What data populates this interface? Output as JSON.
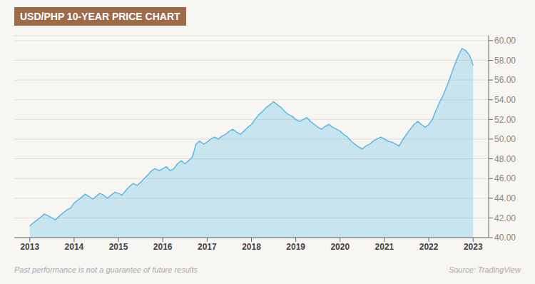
{
  "chart_data": {
    "type": "area",
    "title": "USD/PHP 10-YEAR PRICE CHART",
    "annotations": [
      "Past performance is not a guarantee of future results",
      "Source: TradingView"
    ],
    "color": "#5ab8e8",
    "grid": true,
    "xlim": [
      2012.65,
      2023.35
    ],
    "xticks": [
      2013,
      2014,
      2015,
      2016,
      2017,
      2018,
      2019,
      2020,
      2021,
      2022,
      2023
    ],
    "ylim": [
      40.0,
      60.5
    ],
    "yticks": [
      {
        "value": 40.0,
        "label": "40.00"
      },
      {
        "value": 42.0,
        "label": "42.00"
      },
      {
        "value": 44.0,
        "label": "44.00"
      },
      {
        "value": 46.0,
        "label": "46.00"
      },
      {
        "value": 48.0,
        "label": "48.00"
      },
      {
        "value": 50.0,
        "label": "50.00"
      },
      {
        "value": 52.0,
        "label": "52.00"
      },
      {
        "value": 54.0,
        "label": "54.00"
      },
      {
        "value": 56.0,
        "label": "56.00"
      },
      {
        "value": 58.0,
        "label": "58.00"
      },
      {
        "value": 60.0,
        "label": "60.00"
      }
    ],
    "x": [
      2013.0,
      2013.08,
      2013.17,
      2013.25,
      2013.33,
      2013.42,
      2013.5,
      2013.58,
      2013.67,
      2013.75,
      2013.83,
      2013.92,
      2014.0,
      2014.08,
      2014.17,
      2014.25,
      2014.33,
      2014.42,
      2014.5,
      2014.58,
      2014.67,
      2014.75,
      2014.83,
      2014.92,
      2015.0,
      2015.08,
      2015.17,
      2015.25,
      2015.33,
      2015.42,
      2015.5,
      2015.58,
      2015.67,
      2015.75,
      2015.83,
      2015.92,
      2016.0,
      2016.08,
      2016.17,
      2016.25,
      2016.33,
      2016.42,
      2016.5,
      2016.58,
      2016.67,
      2016.75,
      2016.83,
      2016.92,
      2017.0,
      2017.08,
      2017.17,
      2017.25,
      2017.33,
      2017.42,
      2017.5,
      2017.58,
      2017.67,
      2017.75,
      2017.83,
      2017.92,
      2018.0,
      2018.08,
      2018.17,
      2018.25,
      2018.33,
      2018.42,
      2018.5,
      2018.58,
      2018.67,
      2018.75,
      2018.83,
      2018.92,
      2019.0,
      2019.08,
      2019.17,
      2019.25,
      2019.33,
      2019.42,
      2019.5,
      2019.58,
      2019.67,
      2019.75,
      2019.83,
      2019.92,
      2020.0,
      2020.08,
      2020.17,
      2020.25,
      2020.33,
      2020.42,
      2020.5,
      2020.58,
      2020.67,
      2020.75,
      2020.83,
      2020.92,
      2021.0,
      2021.08,
      2021.17,
      2021.25,
      2021.33,
      2021.42,
      2021.5,
      2021.58,
      2021.67,
      2021.75,
      2021.83,
      2021.92,
      2022.0,
      2022.08,
      2022.17,
      2022.25,
      2022.33,
      2022.42,
      2022.5,
      2022.58,
      2022.67,
      2022.75,
      2022.83,
      2022.92,
      2023.0
    ],
    "values": [
      41.2,
      41.5,
      41.8,
      42.1,
      42.4,
      42.2,
      42.0,
      41.8,
      42.2,
      42.5,
      42.8,
      43.0,
      43.5,
      43.8,
      44.1,
      44.4,
      44.2,
      43.9,
      44.2,
      44.5,
      44.3,
      44.0,
      44.3,
      44.6,
      44.5,
      44.3,
      44.8,
      45.2,
      45.5,
      45.3,
      45.6,
      46.0,
      46.4,
      46.8,
      47.0,
      46.8,
      47.0,
      47.2,
      46.8,
      47.0,
      47.5,
      47.8,
      47.5,
      47.8,
      48.2,
      49.5,
      49.8,
      49.5,
      49.7,
      50.0,
      50.2,
      50.0,
      50.3,
      50.5,
      50.8,
      51.0,
      50.7,
      50.5,
      50.8,
      51.2,
      51.5,
      52.0,
      52.5,
      52.8,
      53.2,
      53.5,
      53.8,
      53.5,
      53.2,
      52.8,
      52.5,
      52.3,
      52.0,
      51.8,
      52.0,
      52.2,
      51.8,
      51.5,
      51.2,
      51.0,
      51.3,
      51.5,
      51.2,
      51.0,
      50.8,
      50.5,
      50.2,
      49.8,
      49.5,
      49.2,
      49.0,
      49.3,
      49.5,
      49.8,
      50.0,
      50.2,
      50.0,
      49.8,
      49.7,
      49.5,
      49.3,
      50.0,
      50.5,
      51.0,
      51.5,
      51.8,
      51.5,
      51.2,
      51.5,
      52.0,
      53.0,
      53.8,
      54.5,
      55.5,
      56.5,
      57.5,
      58.5,
      59.2,
      59.0,
      58.5,
      57.5
    ]
  }
}
